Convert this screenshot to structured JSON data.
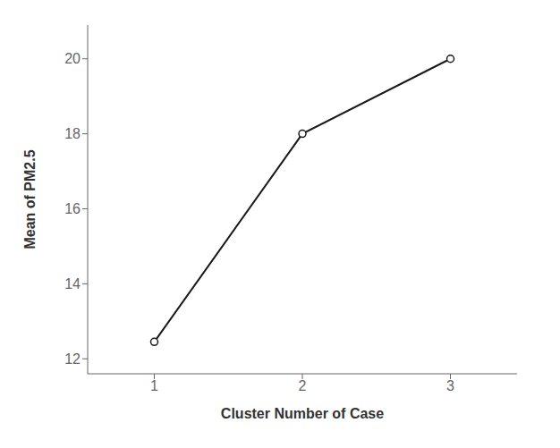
{
  "chart_data": {
    "type": "line",
    "x": [
      1,
      2,
      3
    ],
    "values": [
      12.45,
      18.0,
      20.0
    ],
    "xlabel": "Cluster Number of Case",
    "ylabel": "Mean of PM2.5",
    "xlim": [
      0.55,
      3.45
    ],
    "ylim": [
      11.6,
      20.9
    ],
    "xticks": [
      1,
      2,
      3
    ],
    "yticks": [
      12,
      14,
      16,
      18,
      20
    ],
    "color": "#1a1a1a",
    "marker": "circle",
    "grid": false
  }
}
